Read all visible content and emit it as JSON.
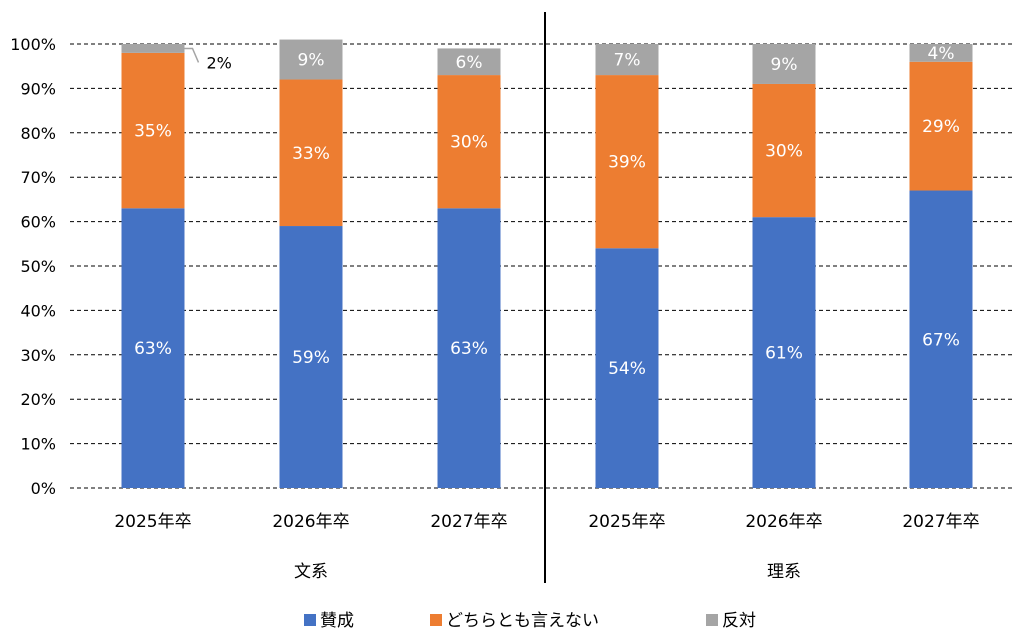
{
  "chart_data": {
    "type": "bar",
    "stacked": true,
    "groups": [
      {
        "label": "文系",
        "categories": [
          "2025年卒",
          "2026年卒",
          "2027年卒"
        ]
      },
      {
        "label": "理系",
        "categories": [
          "2025年卒",
          "2026年卒",
          "2027年卒"
        ]
      }
    ],
    "series": [
      {
        "name": "賛成",
        "color": "#4472C4",
        "values": [
          63,
          59,
          63,
          54,
          61,
          67
        ],
        "labels": [
          "63%",
          "59%",
          "63%",
          "54%",
          "61%",
          "67%"
        ]
      },
      {
        "name": "どちらとも言えない",
        "color": "#ED7D31",
        "values": [
          35,
          33,
          30,
          39,
          30,
          29
        ],
        "labels": [
          "35%",
          "33%",
          "30%",
          "39%",
          "30%",
          "29%"
        ]
      },
      {
        "name": "反対",
        "color": "#A5A5A5",
        "values": [
          2,
          9,
          6,
          7,
          9,
          4
        ],
        "labels": [
          "2%",
          "9%",
          "6%",
          "7%",
          "9%",
          "4%"
        ]
      }
    ],
    "ylim": [
      0,
      100
    ],
    "yticks": [
      "0%",
      "10%",
      "20%",
      "30%",
      "40%",
      "50%",
      "60%",
      "70%",
      "80%",
      "90%",
      "100%"
    ],
    "grid": true,
    "legend_position": "bottom"
  }
}
